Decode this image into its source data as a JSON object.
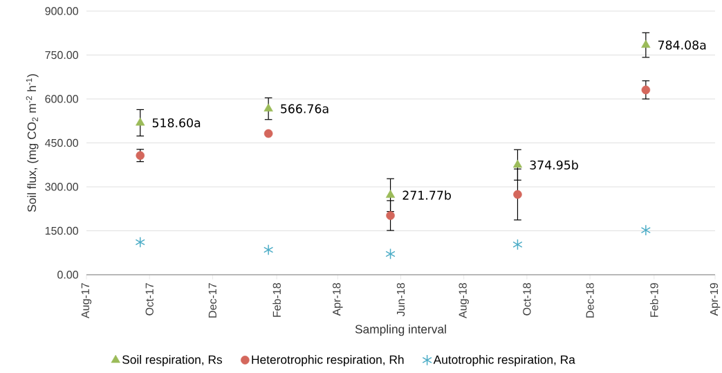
{
  "chart_data": {
    "type": "scatter",
    "x": [
      "2017-09-22",
      "2018-01-24",
      "2018-05-22",
      "2018-09-22",
      "2019-01-24"
    ],
    "series": [
      {
        "name": "Soil respiration, Rs",
        "color": "#9bbb59",
        "marker": "triangle",
        "values": [
          518.6,
          566.76,
          271.77,
          374.95,
          784.08
        ],
        "errors": [
          45,
          37,
          56,
          52,
          42
        ]
      },
      {
        "name": "Heterotrophic respiration, Rh",
        "color": "#d4675c",
        "marker": "circle",
        "values": [
          407,
          482,
          202,
          274,
          631
        ],
        "errors": [
          21,
          null,
          51,
          87,
          31
        ]
      },
      {
        "name": "Autotrophic respiration, Ra",
        "color": "#4bacc6",
        "marker": "cross",
        "values": [
          111,
          85,
          71,
          103,
          152
        ]
      }
    ],
    "annotations": [
      {
        "text": "518.60a",
        "x": "2017-09-22",
        "y": 518.6
      },
      {
        "text": "566.76a",
        "x": "2018-01-24",
        "y": 566.76
      },
      {
        "text": "271.77b",
        "x": "2018-05-22",
        "y": 271.77
      },
      {
        "text": "374.95b",
        "x": "2018-09-22",
        "y": 374.95
      },
      {
        "text": "784.08a",
        "x": "2019-01-24",
        "y": 784.08
      }
    ],
    "xlabel": "Sampling interval",
    "ylabel": "Soil flux, (mg CO$_{2}$ m$^{-2}$ h$^{-1}$)",
    "xlim": [
      "2017-08-01",
      "2019-04-01"
    ],
    "xticks": [
      {
        "value": "2017-08-01",
        "label": "Aug-17"
      },
      {
        "value": "2017-10-01",
        "label": "Oct-17"
      },
      {
        "value": "2017-12-01",
        "label": "Dec-17"
      },
      {
        "value": "2018-02-01",
        "label": "Feb-18"
      },
      {
        "value": "2018-04-01",
        "label": "Apr-18"
      },
      {
        "value": "2018-06-01",
        "label": "Jun-18"
      },
      {
        "value": "2018-08-01",
        "label": "Aug-18"
      },
      {
        "value": "2018-10-01",
        "label": "Oct-18"
      },
      {
        "value": "2018-12-01",
        "label": "Dec-18"
      },
      {
        "value": "2019-02-01",
        "label": "Feb-19"
      },
      {
        "value": "2019-04-01",
        "label": "Apr-19"
      }
    ],
    "ylim": [
      0,
      900
    ],
    "yticks": [
      {
        "value": 0,
        "label": "0.00"
      },
      {
        "value": 150,
        "label": "150.00"
      },
      {
        "value": 300,
        "label": "300.00"
      },
      {
        "value": 450,
        "label": "450.00"
      },
      {
        "value": 600,
        "label": "600.00"
      },
      {
        "value": 750,
        "label": "750.00"
      },
      {
        "value": 900,
        "label": "900.00"
      }
    ],
    "grid": "y",
    "legend": "bottom"
  }
}
